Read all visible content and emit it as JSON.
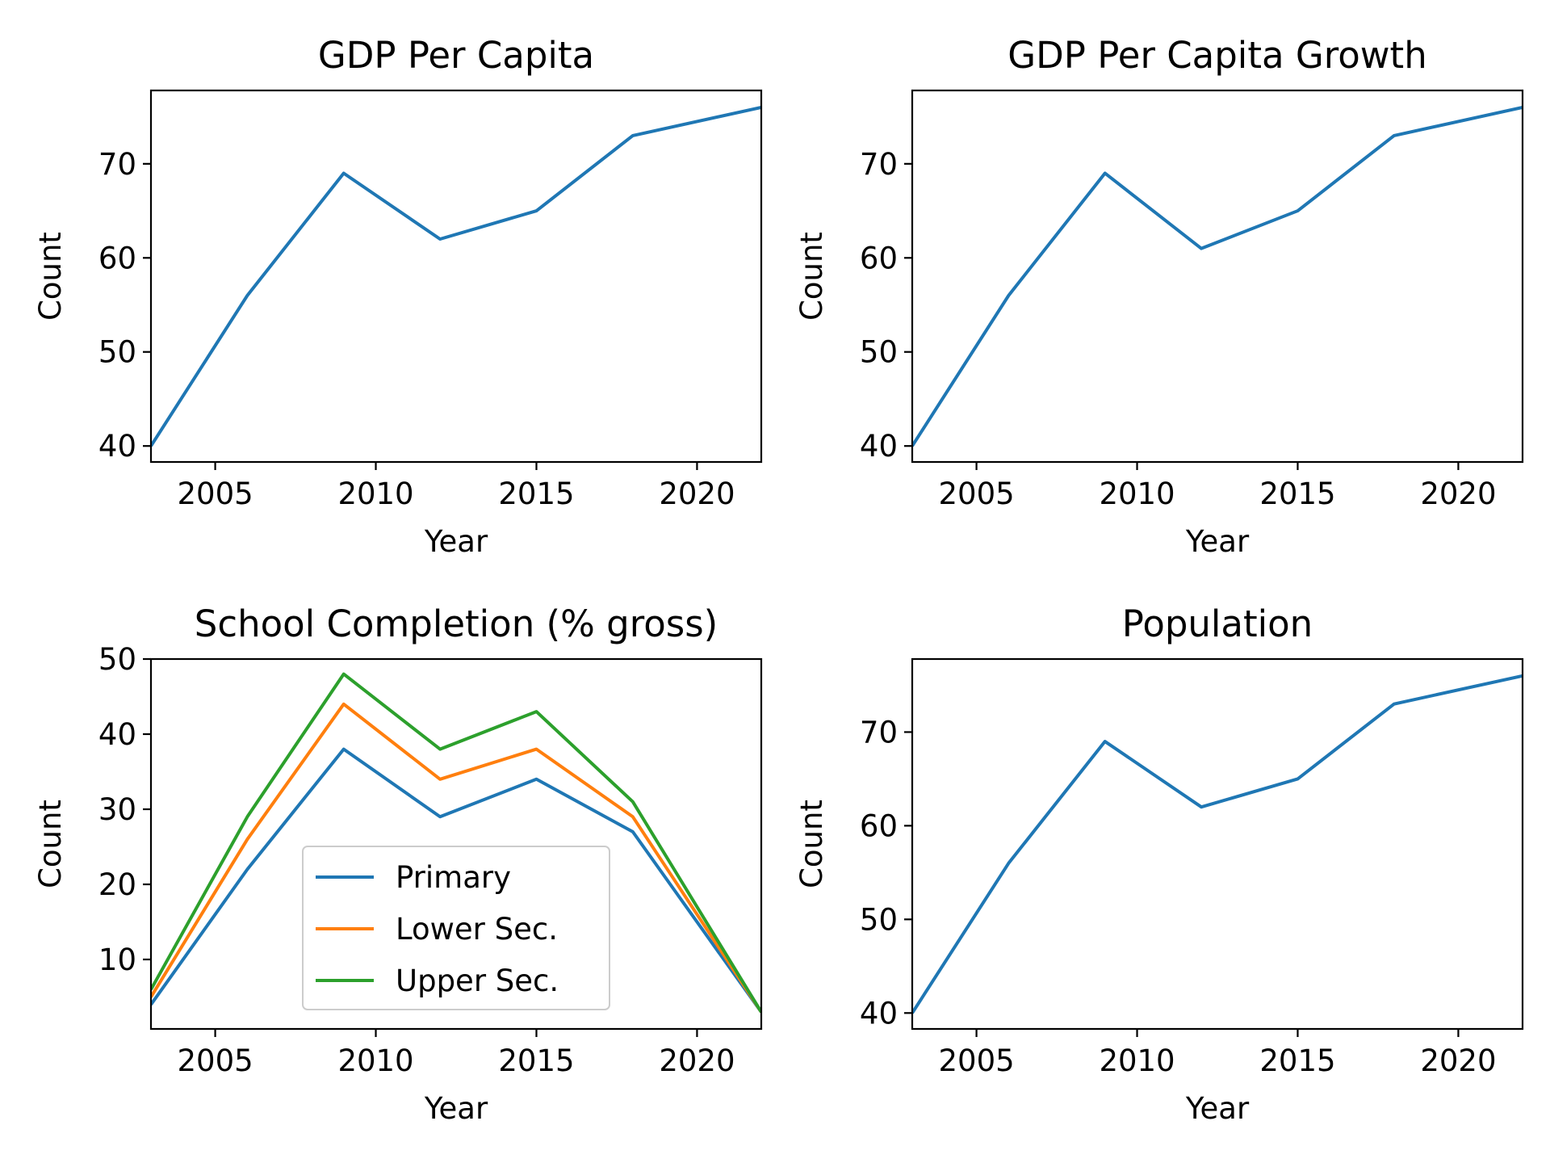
{
  "chart_data": [
    {
      "type": "line",
      "title": "GDP Per Capita",
      "xlabel": "Year",
      "ylabel": "Count",
      "xlim": [
        2003,
        2022
      ],
      "ylim": [
        38.3,
        77.8
      ],
      "xticks": [
        2005,
        2010,
        2015,
        2020
      ],
      "yticks": [
        40,
        50,
        60,
        70
      ],
      "grid": false,
      "x": [
        2003,
        2006,
        2009,
        2012,
        2015,
        2018,
        2022
      ],
      "series": [
        {
          "values": [
            40,
            56,
            69,
            62,
            65,
            73,
            76
          ],
          "color": "#1f77b4"
        }
      ]
    },
    {
      "type": "line",
      "title": "GDP Per Capita Growth",
      "xlabel": "Year",
      "ylabel": "Count",
      "xlim": [
        2003,
        2022
      ],
      "ylim": [
        38.3,
        77.8
      ],
      "xticks": [
        2005,
        2010,
        2015,
        2020
      ],
      "yticks": [
        40,
        50,
        60,
        70
      ],
      "grid": false,
      "x": [
        2003,
        2006,
        2009,
        2012,
        2015,
        2018,
        2022
      ],
      "series": [
        {
          "values": [
            40,
            56,
            69,
            61,
            65,
            73,
            76
          ],
          "color": "#1f77b4"
        }
      ]
    },
    {
      "type": "line",
      "title": "School Completion (% gross)",
      "xlabel": "Year",
      "ylabel": "Count",
      "xlim": [
        2003,
        2022
      ],
      "ylim": [
        0.75,
        50.0
      ],
      "xticks": [
        2005,
        2010,
        2015,
        2020
      ],
      "yticks": [
        10,
        20,
        30,
        40,
        50
      ],
      "grid": false,
      "legend": "lower-center",
      "x": [
        2003,
        2006,
        2009,
        2012,
        2015,
        2018,
        2022
      ],
      "series": [
        {
          "name": "Primary",
          "values": [
            4,
            22,
            38,
            29,
            34,
            27,
            3
          ],
          "color": "#1f77b4"
        },
        {
          "name": "Lower Sec.",
          "values": [
            5,
            26,
            44,
            34,
            38,
            29,
            3
          ],
          "color": "#ff7f0e"
        },
        {
          "name": "Upper Sec.",
          "values": [
            6,
            29,
            48,
            38,
            43,
            31,
            3
          ],
          "color": "#2ca02c"
        }
      ]
    },
    {
      "type": "line",
      "title": "Population",
      "xlabel": "Year",
      "ylabel": "Count",
      "xlim": [
        2003,
        2022
      ],
      "ylim": [
        38.3,
        77.8
      ],
      "xticks": [
        2005,
        2010,
        2015,
        2020
      ],
      "yticks": [
        40,
        50,
        60,
        70
      ],
      "grid": false,
      "x": [
        2003,
        2006,
        2009,
        2012,
        2015,
        2018,
        2022
      ],
      "series": [
        {
          "values": [
            40,
            56,
            69,
            62,
            65,
            73,
            76
          ],
          "color": "#1f77b4"
        }
      ]
    }
  ]
}
